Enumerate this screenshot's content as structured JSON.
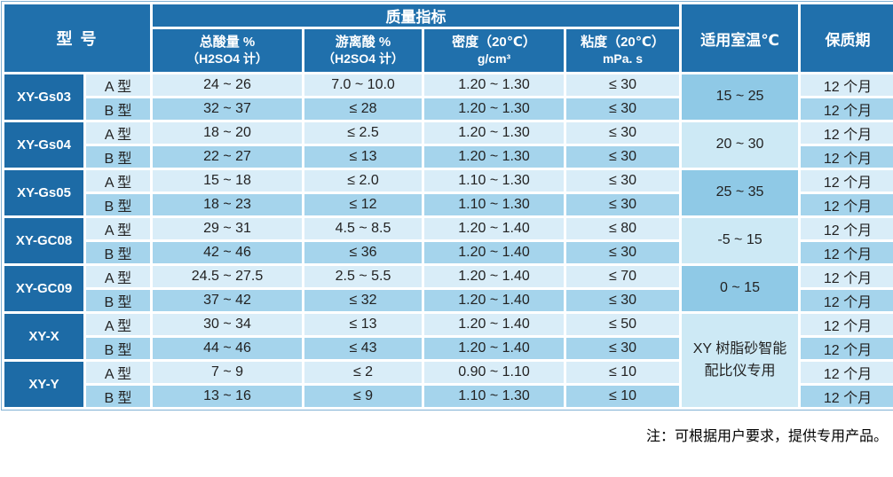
{
  "header": {
    "model": "型 号",
    "quality": "质量指标",
    "temp": "适用室温℃",
    "shelf": "保质期",
    "sub": [
      {
        "line1": "总酸量 %",
        "line2": "（H2SO4 计）"
      },
      {
        "line1": "游离酸 %",
        "line2": "（H2SO4 计）"
      },
      {
        "line1": "密度（20℃）",
        "line2": "g/cm³"
      },
      {
        "line1": "粘度（20℃）",
        "line2": "mPa. s"
      }
    ]
  },
  "groups": [
    {
      "model": "XY-Gs03",
      "temp": "15 ~ 25",
      "temp_rowspan": 2,
      "temp_shade": "t-dark",
      "rows": [
        {
          "type": "A 型",
          "total_acid": "24 ~ 26",
          "free_acid": "7.0 ~ 10.0",
          "density": "1.20 ~ 1.30",
          "viscosity": "≤ 30",
          "shelf": "12 个月"
        },
        {
          "type": "B 型",
          "total_acid": "32 ~ 37",
          "free_acid": "≤ 28",
          "density": "1.20 ~ 1.30",
          "viscosity": "≤ 30",
          "shelf": "12 个月"
        }
      ]
    },
    {
      "model": "XY-Gs04",
      "temp": "20 ~ 30",
      "temp_rowspan": 2,
      "temp_shade": "t-light",
      "rows": [
        {
          "type": "A 型",
          "total_acid": "18 ~ 20",
          "free_acid": "≤ 2.5",
          "density": "1.20 ~ 1.30",
          "viscosity": "≤ 30",
          "shelf": "12 个月"
        },
        {
          "type": "B 型",
          "total_acid": "22 ~ 27",
          "free_acid": "≤ 13",
          "density": "1.20 ~ 1.30",
          "viscosity": "≤ 30",
          "shelf": "12 个月"
        }
      ]
    },
    {
      "model": "XY-Gs05",
      "temp": "25 ~ 35",
      "temp_rowspan": 2,
      "temp_shade": "t-dark",
      "rows": [
        {
          "type": "A 型",
          "total_acid": "15 ~ 18",
          "free_acid": "≤ 2.0",
          "density": "1.10 ~ 1.30",
          "viscosity": "≤ 30",
          "shelf": "12 个月"
        },
        {
          "type": "B 型",
          "total_acid": "18 ~ 23",
          "free_acid": "≤ 12",
          "density": "1.10 ~ 1.30",
          "viscosity": "≤ 30",
          "shelf": "12 个月"
        }
      ]
    },
    {
      "model": "XY-GC08",
      "temp": "-5 ~ 15",
      "temp_rowspan": 2,
      "temp_shade": "t-light",
      "rows": [
        {
          "type": "A 型",
          "total_acid": "29 ~ 31",
          "free_acid": "4.5 ~ 8.5",
          "density": "1.20 ~ 1.40",
          "viscosity": "≤ 80",
          "shelf": "12 个月"
        },
        {
          "type": "B 型",
          "total_acid": "42 ~ 46",
          "free_acid": "≤ 36",
          "density": "1.20 ~ 1.40",
          "viscosity": "≤ 30",
          "shelf": "12 个月"
        }
      ]
    },
    {
      "model": "XY-GC09",
      "temp": "0 ~ 15",
      "temp_rowspan": 2,
      "temp_shade": "t-dark",
      "rows": [
        {
          "type": "A 型",
          "total_acid": "24.5 ~ 27.5",
          "free_acid": "2.5 ~ 5.5",
          "density": "1.20 ~ 1.40",
          "viscosity": "≤ 70",
          "shelf": "12 个月"
        },
        {
          "type": "B 型",
          "total_acid": "37 ~ 42",
          "free_acid": "≤ 32",
          "density": "1.20 ~ 1.40",
          "viscosity": "≤ 30",
          "shelf": "12 个月"
        }
      ]
    },
    {
      "model": "XY-X",
      "temp": "XY 树脂砂智能\n配比仪专用",
      "temp_rowspan": 4,
      "temp_shade": "t-light",
      "rows": [
        {
          "type": "A 型",
          "total_acid": "30 ~ 34",
          "free_acid": "≤ 13",
          "density": "1.20 ~ 1.40",
          "viscosity": "≤ 50",
          "shelf": "12 个月"
        },
        {
          "type": "B 型",
          "total_acid": "44 ~ 46",
          "free_acid": "≤ 43",
          "density": "1.20 ~ 1.40",
          "viscosity": "≤ 30",
          "shelf": "12 个月"
        }
      ]
    },
    {
      "model": "XY-Y",
      "temp": null,
      "rows": [
        {
          "type": "A 型",
          "total_acid": "7 ~ 9",
          "free_acid": "≤ 2",
          "density": "0.90 ~ 1.10",
          "viscosity": "≤ 10",
          "shelf": "12 个月"
        },
        {
          "type": "B 型",
          "total_acid": "13 ~ 16",
          "free_acid": "≤ 9",
          "density": "1.10 ~ 1.30",
          "viscosity": "≤ 10",
          "shelf": "12 个月"
        }
      ]
    }
  ],
  "note": "注：可根据用户要求，提供专用产品。",
  "colors": {
    "header_blue": "#2070ac",
    "model_blue": "#1d6ba6",
    "row_light": "#d9edf8",
    "row_mid": "#a5d4ec",
    "temp_dark": "#8fc9e6",
    "temp_light": "#cde9f5"
  }
}
